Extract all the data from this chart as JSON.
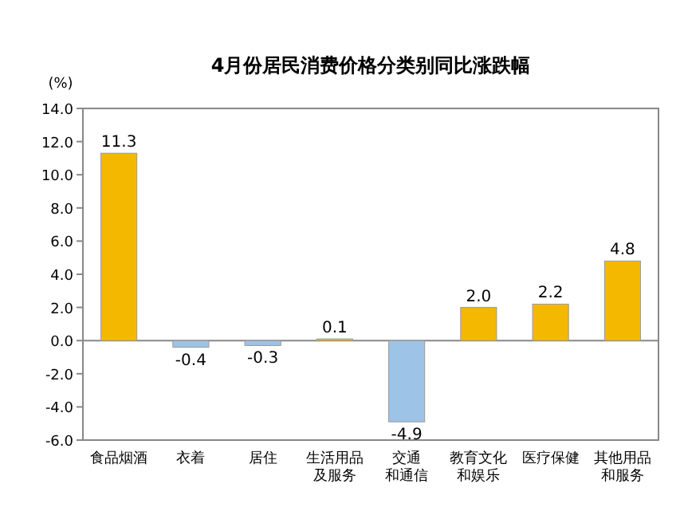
{
  "chart_data": {
    "type": "bar",
    "title": "4月份居民消费价格分类别同比涨跌幅",
    "ylabel": "(%)",
    "categories": [
      "食品烟酒",
      "衣着",
      "居住",
      "生活用品及服务",
      "交通和通信",
      "教育文化和娱乐",
      "医疗保健",
      "其他用品和服务"
    ],
    "values": [
      11.3,
      -0.4,
      -0.3,
      0.1,
      -4.9,
      2.0,
      2.2,
      4.8
    ],
    "colors": [
      "#f5b800",
      "#9dc3e6",
      "#9dc3e6",
      "#f5b800",
      "#9dc3e6",
      "#f5b800",
      "#f5b800",
      "#f5b800"
    ],
    "ylim": [
      -6,
      14
    ],
    "yticks": [
      {
        "value": -6,
        "label": "-6.0"
      },
      {
        "value": -4,
        "label": "-4.0"
      },
      {
        "value": -2,
        "label": "-2.0"
      },
      {
        "value": 0,
        "label": "0.0"
      },
      {
        "value": 2,
        "label": "2.0"
      },
      {
        "value": 4,
        "label": "4.0"
      },
      {
        "value": 6,
        "label": "6.0"
      },
      {
        "value": 8,
        "label": "8.0"
      },
      {
        "value": 10,
        "label": "10.0"
      },
      {
        "value": 12,
        "label": "12.0"
      },
      {
        "value": 14,
        "label": "14.0"
      }
    ],
    "value_labels": [
      "11.3",
      "-0.4",
      "-0.3",
      "0.1",
      "-4.9",
      "2.0",
      "2.2",
      "4.8"
    ]
  }
}
